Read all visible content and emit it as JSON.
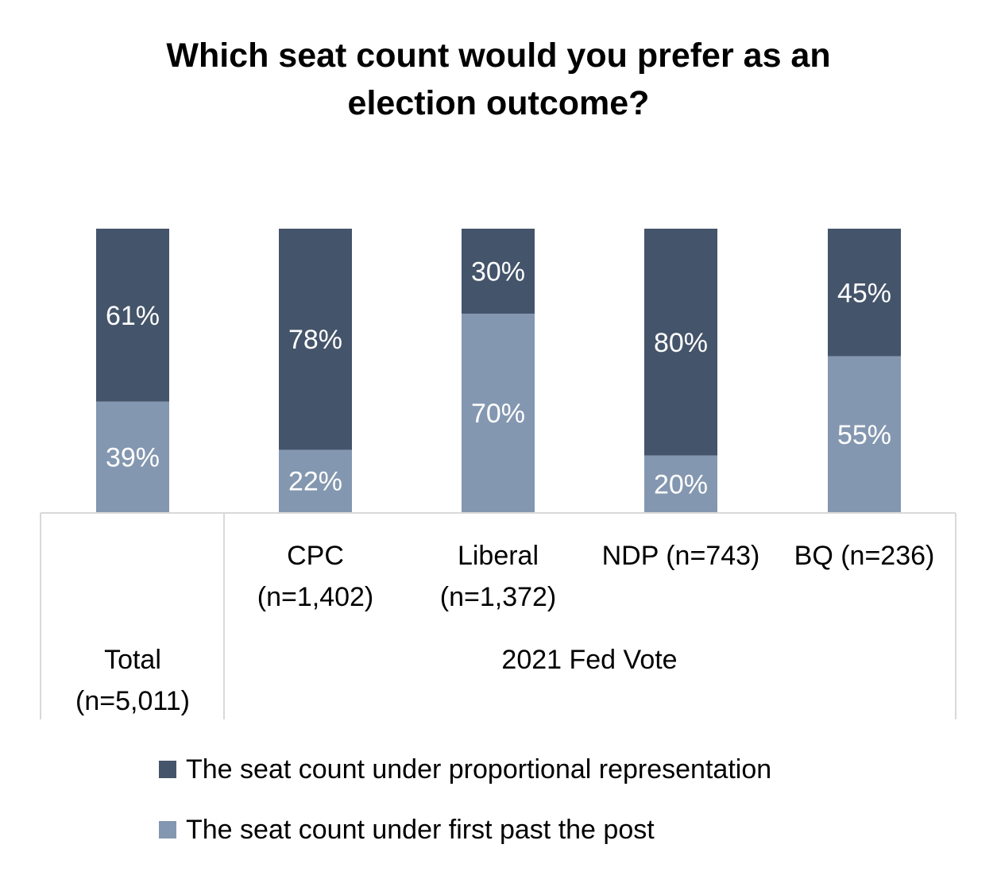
{
  "chart_data": {
    "type": "bar",
    "stacked": true,
    "percent": true,
    "title": [
      "Which seat count would you prefer as an",
      "election outcome?"
    ],
    "categories": [
      [
        "Total",
        "(n=5,011)"
      ],
      [
        "CPC",
        "(n=1,402)"
      ],
      [
        "Liberal",
        "(n=1,372)"
      ],
      [
        "NDP (n=743)"
      ],
      [
        "BQ (n=236)"
      ]
    ],
    "group_label": "2021 Fed Vote",
    "series": [
      {
        "name": "The seat count under first past the post",
        "color": "#8497b0",
        "values": [
          39,
          22,
          70,
          20,
          55
        ],
        "labels": [
          "39%",
          "22%",
          "70%",
          "20%",
          "55%"
        ]
      },
      {
        "name": "The seat count under proportional representation",
        "color": "#44546a",
        "values": [
          61,
          78,
          30,
          80,
          45
        ],
        "labels": [
          "61%",
          "78%",
          "30%",
          "80%",
          "45%"
        ]
      }
    ],
    "ylim": [
      0,
      100
    ],
    "grid": false,
    "legend_position": "bottom",
    "legend_order": [
      "The seat count under proportional representation",
      "The seat count under first past the post"
    ]
  }
}
